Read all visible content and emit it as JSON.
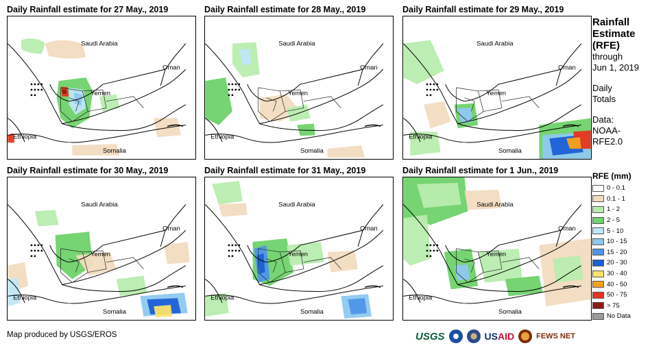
{
  "panels": [
    {
      "title": "Daily Rainfall estimate for 27 May., 2019"
    },
    {
      "title": "Daily Rainfall estimate for 28 May., 2019"
    },
    {
      "title": "Daily Rainfall estimate for 29 May., 2019"
    },
    {
      "title": "Daily Rainfall estimate for 30 May., 2019"
    },
    {
      "title": "Daily Rainfall estimate for 31 May., 2019"
    },
    {
      "title": "Daily Rainfall estimate for 1 Jun., 2019"
    }
  ],
  "map_labels": {
    "saudi": "Saudi Arabia",
    "oman": "Oman",
    "yemen": "Yemen",
    "ethiopia": "Ethiopia",
    "somalia": "Somalia"
  },
  "sidebar": {
    "title_lines": [
      "Rainfall",
      "Estimate",
      "(RFE)"
    ],
    "through": "through",
    "date": "Jun 1, 2019",
    "daily": "Daily",
    "totals": "Totals",
    "data": "Data:",
    "source1": "NOAA-",
    "source2": "RFE2.0"
  },
  "legend": {
    "title": "RFE (mm)",
    "items": [
      {
        "label": "0 - 0.1",
        "color": "#ffffff"
      },
      {
        "label": "0.1 - 1",
        "color": "#f2dcc0"
      },
      {
        "label": "1 - 2",
        "color": "#b8ecae"
      },
      {
        "label": "2 - 5",
        "color": "#6fd26a"
      },
      {
        "label": "5 - 10",
        "color": "#bfe6f7"
      },
      {
        "label": "10 - 15",
        "color": "#8ec8ef"
      },
      {
        "label": "15 - 20",
        "color": "#4e95e8"
      },
      {
        "label": "20 - 30",
        "color": "#1c5fd6"
      },
      {
        "label": "30 - 40",
        "color": "#fbe36a"
      },
      {
        "label": "40 - 50",
        "color": "#f5a31a"
      },
      {
        "label": "50 - 75",
        "color": "#e8341a"
      },
      {
        "label": "> 75",
        "color": "#8e1a16"
      },
      {
        "label": "No Data",
        "color": "#9a9a9a"
      }
    ]
  },
  "credit": "Map produced by USGS/EROS",
  "logos": {
    "usgs": "USGS",
    "usaid_a": "US",
    "usaid_b": "AID",
    "fews": "FEWS NET"
  }
}
